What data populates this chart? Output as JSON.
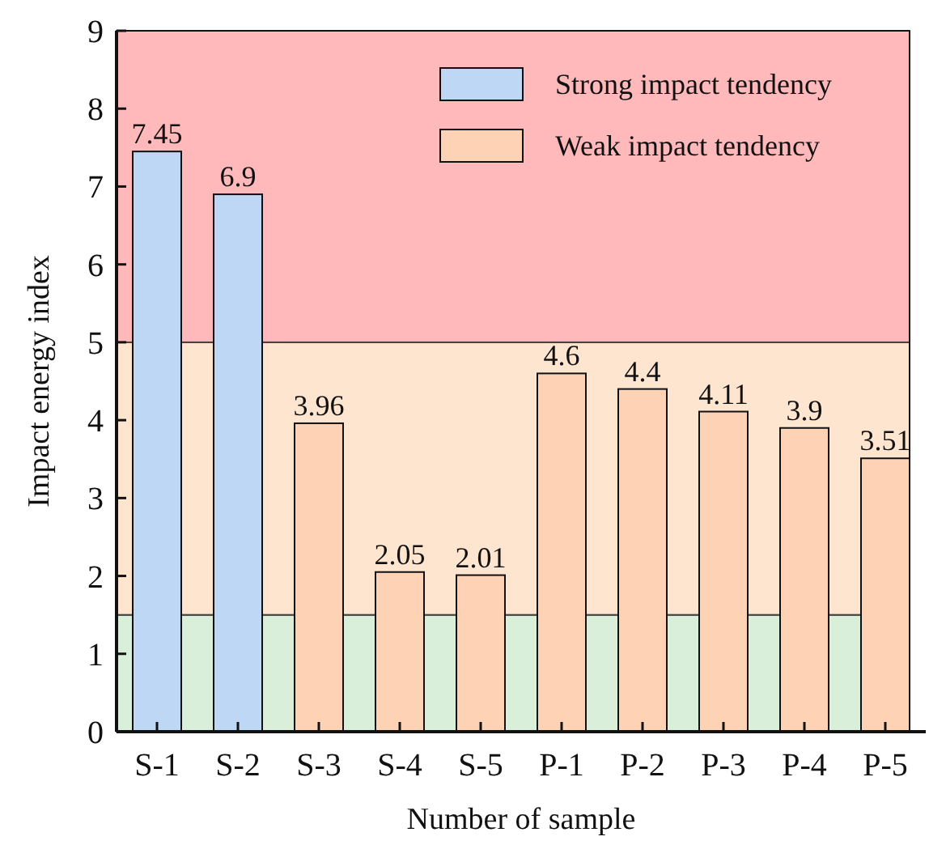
{
  "chart_data": {
    "type": "bar",
    "xlabel": "Number of sample",
    "ylabel": "Impact energy index",
    "categories": [
      "S-1",
      "S-2",
      "S-3",
      "S-4",
      "S-5",
      "P-1",
      "P-2",
      "P-3",
      "P-4",
      "P-5"
    ],
    "series": [
      {
        "name": "Strong impact tendency",
        "color": "#bdd7f5",
        "values": [
          7.45,
          6.9,
          null,
          null,
          null,
          null,
          null,
          null,
          null,
          null
        ]
      },
      {
        "name": "Weak impact tendency",
        "color": "#fed3b5",
        "values": [
          null,
          null,
          3.96,
          2.05,
          2.01,
          4.6,
          4.4,
          4.11,
          3.9,
          3.51
        ]
      }
    ],
    "stacked": true,
    "data_labels": true,
    "ylim": [
      0,
      9
    ],
    "yticks": [
      0,
      1,
      2,
      3,
      4,
      5,
      6,
      7,
      8,
      9
    ],
    "bands": [
      {
        "axis": "y",
        "from": 0,
        "to": 1.5,
        "color": "#d9efd9"
      },
      {
        "axis": "y",
        "from": 1.5,
        "to": 5,
        "color": "#fee5cf"
      },
      {
        "axis": "y",
        "from": 5,
        "to": 9,
        "color": "#ffb9ba"
      }
    ],
    "legend": "top right"
  }
}
